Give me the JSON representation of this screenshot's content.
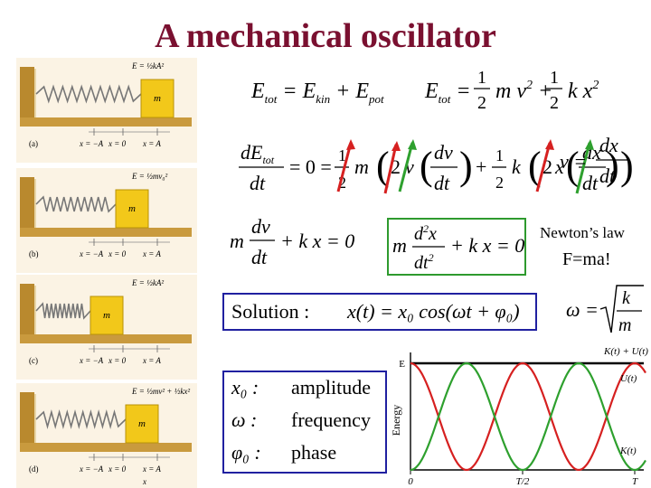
{
  "title": "A mechanical oscillator",
  "notes": {
    "newton": "Newton’s law",
    "fma": "F=ma!"
  },
  "panels": [
    {
      "letter": "(a)",
      "energy": "E = ½kA²",
      "ticks": [
        "x = −A",
        "x = 0",
        "x = A"
      ],
      "mass": "m",
      "compression": 0.0
    },
    {
      "letter": "(b)",
      "energy": "E = ½mv₀²",
      "ticks": [
        "x = −A",
        "x = 0",
        "x = A"
      ],
      "mass": "m",
      "compression": 0.5
    },
    {
      "letter": "(c)",
      "energy": "E = ½kA²",
      "ticks": [
        "x = −A",
        "x = 0",
        "x = A"
      ],
      "mass": "m",
      "compression": 1.0
    },
    {
      "letter": "(d)",
      "energy": "E = ½mv² + ½kx²",
      "ticks": [
        "x = −A",
        "x = 0",
        "x = A"
      ],
      "mass": "m",
      "compression": 0.3,
      "xlabel": "x"
    }
  ],
  "solution": {
    "label": "Solution :",
    "equation": "x(t) = x₀ cos(ωt + φ₀)"
  },
  "definitions": [
    {
      "symbol": "x₀ :",
      "meaning": "amplitude"
    },
    {
      "symbol": "ω  :",
      "meaning": "frequency"
    },
    {
      "symbol": "φ₀ :",
      "meaning": "phase"
    }
  ],
  "energy_chart": {
    "ylabel": "Energy",
    "y_tick": "E",
    "x_ticks": [
      "0",
      "T/2",
      "T"
    ],
    "labels": {
      "total": "K(t) + U(t)",
      "potential": "U(t)",
      "kinetic": "K(t)"
    },
    "colors": {
      "total": "#000000",
      "potential": "#d62020",
      "kinetic": "#2ea02e"
    }
  },
  "colors": {
    "title": "#7a1030",
    "arrow_red": "#d62020",
    "arrow_green": "#2ea02e",
    "box_green": "#2e9a2e",
    "box_blue": "#2020a0"
  }
}
